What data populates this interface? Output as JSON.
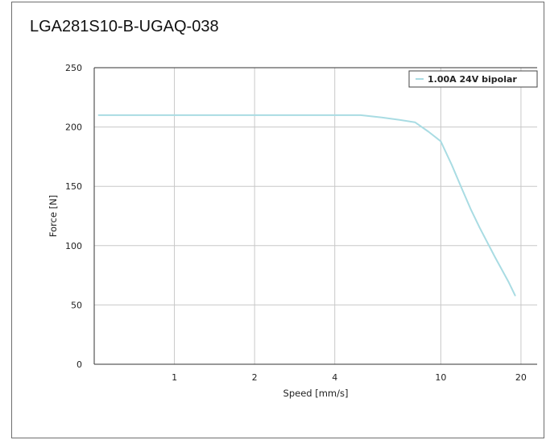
{
  "title": "LGA281S10-B-UGAQ-038",
  "chart_data": {
    "type": "line",
    "xlabel": "Speed [mm/s]",
    "ylabel": "Force [N]",
    "xscale": "log",
    "xlim": [
      0.5,
      23
    ],
    "ylim": [
      0,
      250
    ],
    "xticks": [
      1,
      2,
      4,
      10,
      20
    ],
    "yticks": [
      0,
      50,
      100,
      150,
      200,
      250
    ],
    "grid": true,
    "legend": "top-right",
    "series": [
      {
        "name": "1.00A 24V bipolar",
        "color": "#a9dce3",
        "x": [
          0.52,
          1,
          2,
          4,
          5,
          6,
          7,
          8,
          9,
          10,
          11,
          12,
          13,
          14,
          16,
          18,
          19
        ],
        "y": [
          210,
          210,
          210,
          210,
          210,
          208,
          206,
          204,
          196,
          188,
          168,
          148,
          130,
          115,
          90,
          69,
          58
        ]
      }
    ]
  }
}
